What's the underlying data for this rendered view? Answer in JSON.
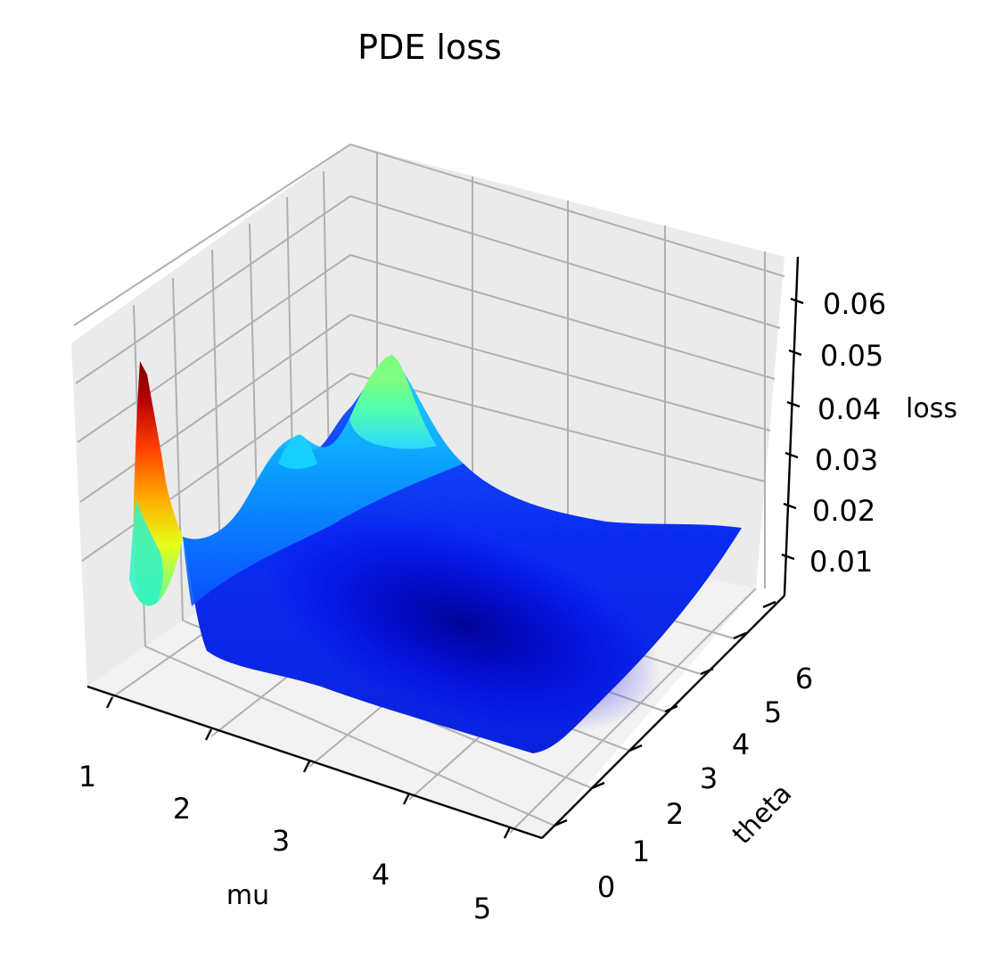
{
  "chart_data": {
    "type": "surface3d",
    "title": "PDE loss",
    "xlabel": "mu",
    "ylabel": "theta",
    "zlabel": "loss",
    "x_ticks": [
      "1",
      "2",
      "3",
      "4",
      "5"
    ],
    "y_ticks": [
      "0",
      "1",
      "2",
      "3",
      "4",
      "5",
      "6"
    ],
    "z_ticks": [
      "0.01",
      "0.02",
      "0.03",
      "0.04",
      "0.05",
      "0.06"
    ],
    "xlim": [
      0.75,
      5.25
    ],
    "ylim": [
      -0.3,
      6.6
    ],
    "zlim": [
      0.003,
      0.066
    ],
    "colormap": "jet",
    "grid": true,
    "surface_samples": {
      "mu": [
        0.9,
        1.5,
        2.0,
        2.5,
        3.0,
        3.5,
        4.0,
        4.5,
        5.0
      ],
      "theta": [
        0.0,
        1.0,
        2.0,
        3.0,
        4.0,
        5.0,
        6.0,
        6.28
      ],
      "loss": [
        [
          0.007,
          0.006,
          0.006,
          0.007,
          0.008,
          0.01,
          0.011,
          0.012
        ],
        [
          0.007,
          0.005,
          0.004,
          0.004,
          0.005,
          0.007,
          0.009,
          0.01
        ],
        [
          0.006,
          0.004,
          0.003,
          0.003,
          0.004,
          0.006,
          0.008,
          0.01
        ],
        [
          0.006,
          0.004,
          0.003,
          0.002,
          0.003,
          0.005,
          0.009,
          0.012
        ],
        [
          0.006,
          0.004,
          0.003,
          0.002,
          0.003,
          0.006,
          0.01,
          0.014
        ],
        [
          0.006,
          0.004,
          0.003,
          0.003,
          0.004,
          0.007,
          0.012,
          0.016
        ],
        [
          0.006,
          0.005,
          0.004,
          0.004,
          0.005,
          0.008,
          0.014,
          0.02
        ],
        [
          0.007,
          0.006,
          0.005,
          0.005,
          0.006,
          0.009,
          0.016,
          0.023
        ],
        [
          0.008,
          0.007,
          0.006,
          0.006,
          0.007,
          0.01,
          0.018,
          0.026
        ]
      ],
      "peaks": [
        {
          "mu": 0.8,
          "theta": 5.8,
          "loss": 0.065
        },
        {
          "mu": 1.9,
          "theta": 5.9,
          "loss": 0.054
        },
        {
          "mu": 1.1,
          "theta": 5.2,
          "loss": 0.03
        }
      ]
    },
    "colors": {
      "pane": "#f2f2f2",
      "floor": "#f5f5f5",
      "grid": "#b0b0b0",
      "axis": "#000000"
    }
  }
}
